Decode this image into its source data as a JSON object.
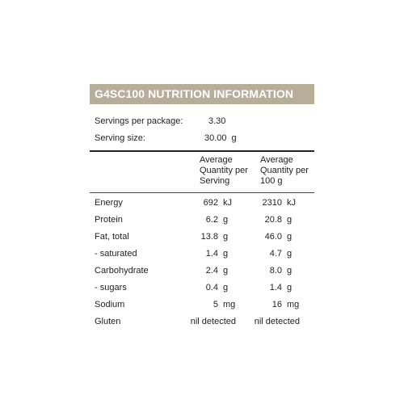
{
  "title": "G4SC100 NUTRITION INFORMATION",
  "servings_per_package": {
    "label": "Servings per package:",
    "value": "3.30"
  },
  "serving_size": {
    "label": "Serving size:",
    "value": "30.00",
    "unit": "g"
  },
  "columns": {
    "per_serving": "Average Quantity per Serving",
    "per_100g": "Average Quantity per 100 g"
  },
  "rows": [
    {
      "label": "Energy",
      "serving": "692",
      "serving_unit": "kJ",
      "per100": "2310",
      "per100_unit": "kJ"
    },
    {
      "label": "Protein",
      "serving": "6.2",
      "serving_unit": "g",
      "per100": "20.8",
      "per100_unit": "g"
    },
    {
      "label": "Fat, total",
      "serving": "13.8",
      "serving_unit": "g",
      "per100": "46.0",
      "per100_unit": "g"
    },
    {
      "label": "- saturated",
      "serving": "1.4",
      "serving_unit": "g",
      "per100": "4.7",
      "per100_unit": "g"
    },
    {
      "label": "Carbohydrate",
      "serving": "2.4",
      "serving_unit": "g",
      "per100": "8.0",
      "per100_unit": "g"
    },
    {
      "label": "- sugars",
      "serving": "0.4",
      "serving_unit": "g",
      "per100": "1.4",
      "per100_unit": "g"
    },
    {
      "label": "Sodium",
      "serving": "5",
      "serving_unit": "mg",
      "per100": "16",
      "per100_unit": "mg"
    },
    {
      "label": "Gluten",
      "serving": "nil detected",
      "serving_unit": "",
      "per100": "nil detected",
      "per100_unit": ""
    }
  ],
  "colors": {
    "title_background": "#b7ae99",
    "title_text": "#ffffff",
    "text": "#222222"
  }
}
